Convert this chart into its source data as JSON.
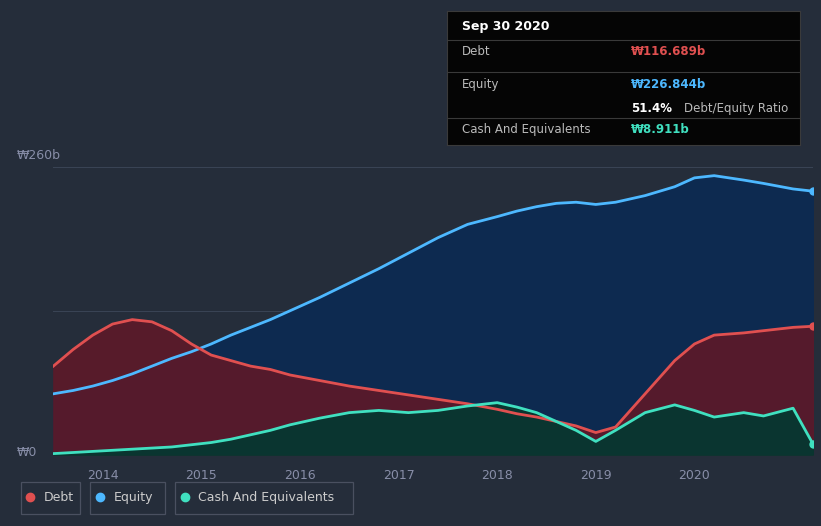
{
  "background_color": "#252d3a",
  "plot_bg_color": "#252d3a",
  "grid_color": "#3a4455",
  "title_box": {
    "date": "Sep 30 2020",
    "debt_label": "Debt",
    "debt_value": "₩116.689b",
    "equity_label": "Equity",
    "equity_value": "₩226.844b",
    "ratio": "51.4%",
    "ratio_label": "Debt/Equity Ratio",
    "cash_label": "Cash And Equivalents",
    "cash_value": "₩8.911b",
    "box_bg": "#050505"
  },
  "y_label_top": "₩260b",
  "y_label_bottom": "₩0",
  "x_ticks": [
    2014.0,
    2015.0,
    2016.0,
    2017.0,
    2018.0,
    2019.0,
    2020.0
  ],
  "x_tick_labels": [
    "2014",
    "2015",
    "2016",
    "2017",
    "2018",
    "2019",
    "2020"
  ],
  "xlim": [
    2013.5,
    2021.2
  ],
  "ylim": [
    -5,
    280
  ],
  "debt_color": "#e05050",
  "equity_color": "#4db8ff",
  "cash_color": "#40e0c0",
  "debt_fill_color": "#5a1a2a",
  "equity_fill_color": "#0d2a50",
  "cash_fill_color": "#0a3530",
  "legend_items": [
    {
      "label": "Debt",
      "color": "#e05050"
    },
    {
      "label": "Equity",
      "color": "#4db8ff"
    },
    {
      "label": "Cash And Equivalents",
      "color": "#40e0c0"
    }
  ],
  "debt_x": [
    2013.5,
    2013.7,
    2013.9,
    2014.1,
    2014.3,
    2014.5,
    2014.7,
    2014.9,
    2015.1,
    2015.3,
    2015.5,
    2015.7,
    2015.9,
    2016.2,
    2016.5,
    2016.8,
    2017.1,
    2017.4,
    2017.7,
    2018.0,
    2018.2,
    2018.4,
    2018.6,
    2018.8,
    2019.0,
    2019.2,
    2019.5,
    2019.8,
    2020.0,
    2020.2,
    2020.5,
    2020.7,
    2021.0,
    2021.2
  ],
  "debt_y": [
    80,
    95,
    108,
    118,
    122,
    120,
    112,
    100,
    90,
    85,
    80,
    77,
    72,
    67,
    62,
    58,
    54,
    50,
    46,
    41,
    37,
    34,
    30,
    26,
    20,
    25,
    55,
    85,
    100,
    108,
    110,
    112,
    115,
    116
  ],
  "equity_x": [
    2013.5,
    2013.7,
    2013.9,
    2014.1,
    2014.3,
    2014.5,
    2014.7,
    2014.9,
    2015.1,
    2015.3,
    2015.5,
    2015.7,
    2015.9,
    2016.2,
    2016.5,
    2016.8,
    2017.1,
    2017.4,
    2017.7,
    2018.0,
    2018.2,
    2018.4,
    2018.6,
    2018.8,
    2019.0,
    2019.2,
    2019.5,
    2019.8,
    2020.0,
    2020.2,
    2020.5,
    2020.7,
    2021.0,
    2021.2
  ],
  "equity_y": [
    55,
    58,
    62,
    67,
    73,
    80,
    87,
    93,
    100,
    108,
    115,
    122,
    130,
    142,
    155,
    168,
    182,
    196,
    208,
    215,
    220,
    224,
    227,
    228,
    226,
    228,
    234,
    242,
    250,
    252,
    248,
    245,
    240,
    238
  ],
  "cash_x": [
    2013.5,
    2013.7,
    2013.9,
    2014.1,
    2014.3,
    2014.5,
    2014.7,
    2014.9,
    2015.1,
    2015.3,
    2015.5,
    2015.7,
    2015.9,
    2016.2,
    2016.5,
    2016.8,
    2017.1,
    2017.4,
    2017.7,
    2018.0,
    2018.2,
    2018.4,
    2018.6,
    2018.8,
    2019.0,
    2019.2,
    2019.5,
    2019.8,
    2020.0,
    2020.2,
    2020.5,
    2020.7,
    2021.0,
    2021.2
  ],
  "cash_y": [
    1,
    2,
    3,
    4,
    5,
    6,
    7,
    9,
    11,
    14,
    18,
    22,
    27,
    33,
    38,
    40,
    38,
    40,
    44,
    47,
    43,
    38,
    30,
    22,
    12,
    22,
    38,
    45,
    40,
    34,
    38,
    35,
    42,
    10
  ]
}
